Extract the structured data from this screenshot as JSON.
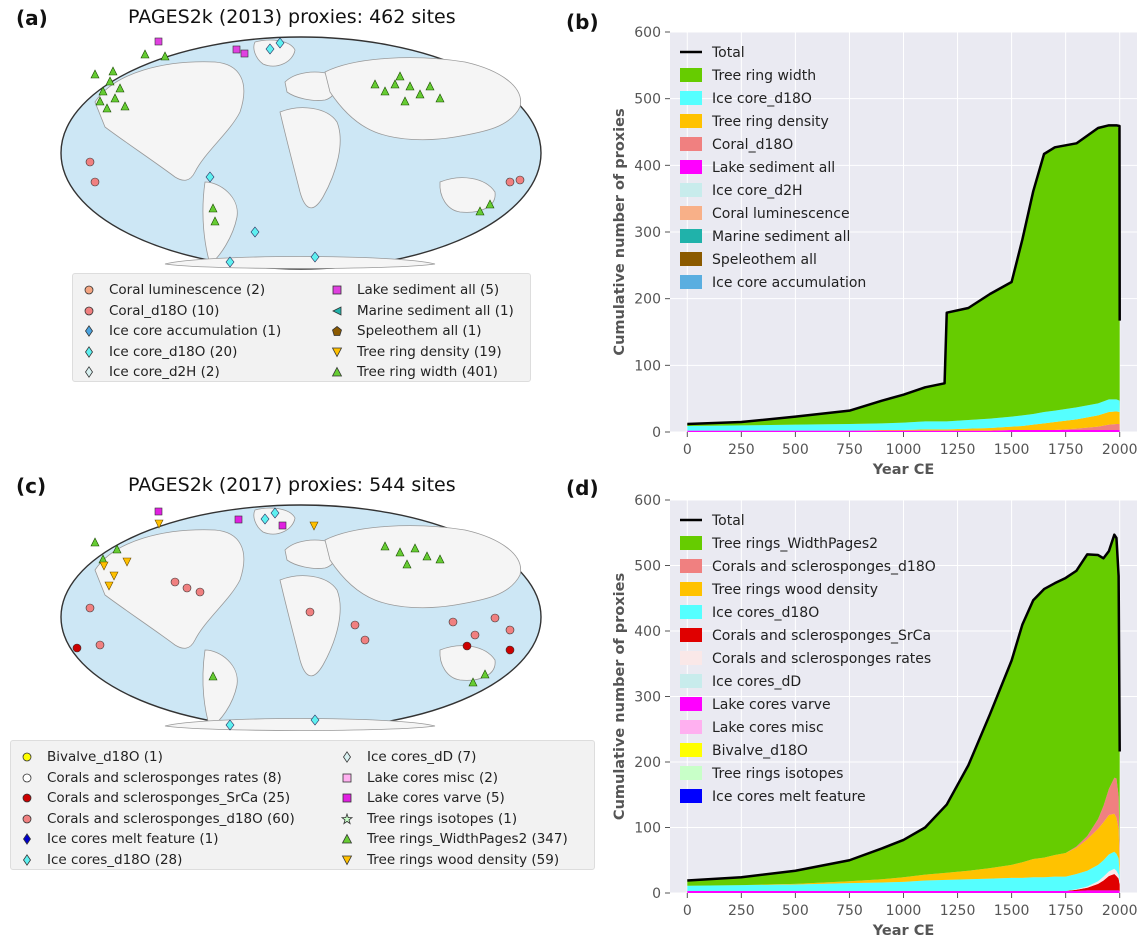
{
  "panels": {
    "a": {
      "letter": "(a)",
      "title": "PAGES2k (2013) proxies: 462 sites",
      "legend_left": [
        {
          "label": "Coral luminescence (2)",
          "marker": "circle",
          "color": "#f4a582"
        },
        {
          "label": "Coral_d18O (10)",
          "marker": "circle",
          "color": "#f08080"
        },
        {
          "label": "Ice core accumulation (1)",
          "marker": "diamond",
          "color": "#4aa3df"
        },
        {
          "label": "Ice core_d18O (20)",
          "marker": "diamond",
          "color": "#5ef0f0"
        },
        {
          "label": "Ice core_d2H (2)",
          "marker": "diamond",
          "color": "#d8f0f0"
        }
      ],
      "legend_right": [
        {
          "label": "Lake sediment all (5)",
          "marker": "square",
          "color": "#e040e0"
        },
        {
          "label": "Marine sediment all (1)",
          "marker": "triangle-left",
          "color": "#20b2aa"
        },
        {
          "label": "Speleothem all (1)",
          "marker": "pentagon",
          "color": "#8b5a00"
        },
        {
          "label": "Tree ring density (19)",
          "marker": "triangle-down",
          "color": "#ffc000"
        },
        {
          "label": "Tree ring width (401)",
          "marker": "triangle-up",
          "color": "#66cc33"
        }
      ]
    },
    "b": {
      "letter": "(b)"
    },
    "c": {
      "letter": "(c)",
      "title": "PAGES2k (2017) proxies: 544 sites",
      "legend_left": [
        {
          "label": "Bivalve_d18O (1)",
          "marker": "circle",
          "color": "#ffff00"
        },
        {
          "label": "Corals and sclerosponges rates (8)",
          "marker": "circle",
          "color": "#ffffff"
        },
        {
          "label": "Corals and sclerosponges_SrCa (25)",
          "marker": "circle",
          "color": "#cc0000"
        },
        {
          "label": "Corals and sclerosponges_d18O (60)",
          "marker": "circle",
          "color": "#f08080"
        },
        {
          "label": "Ice cores melt feature (1)",
          "marker": "diamond",
          "color": "#0000cc"
        },
        {
          "label": "Ice cores_d18O (28)",
          "marker": "diamond",
          "color": "#5ef0f0"
        }
      ],
      "legend_right": [
        {
          "label": "Ice cores_dD (7)",
          "marker": "diamond",
          "color": "#d8f0f0"
        },
        {
          "label": "Lake cores misc (2)",
          "marker": "square",
          "color": "#ffb0f0"
        },
        {
          "label": "Lake cores varve (5)",
          "marker": "square",
          "color": "#e020e0"
        },
        {
          "label": "Tree rings isotopes (1)",
          "marker": "star",
          "color": "#c8ffc8"
        },
        {
          "label": "Tree rings_WidthPages2 (347)",
          "marker": "triangle-up",
          "color": "#66cc33"
        },
        {
          "label": "Tree rings wood density (59)",
          "marker": "triangle-down",
          "color": "#ffc000"
        }
      ]
    },
    "d": {
      "letter": "(d)"
    }
  },
  "chart_data": [
    {
      "panel": "b",
      "type": "area",
      "xlabel": "Year CE",
      "ylabel": "Cumulative number of proxies",
      "xlim": [
        -80,
        2080
      ],
      "ylim": [
        0,
        600
      ],
      "xticks": [
        0,
        250,
        500,
        750,
        1000,
        1250,
        1500,
        1750,
        2000
      ],
      "yticks": [
        0,
        100,
        200,
        300,
        400,
        500,
        600
      ],
      "grid": true,
      "background": "#eaeaf2",
      "legend_position": "top-left",
      "legend": [
        {
          "name": "Total",
          "color": "#000000",
          "kind": "line"
        },
        {
          "name": "Tree ring width",
          "color": "#66cc00"
        },
        {
          "name": "Ice core_d18O",
          "color": "#55ffff"
        },
        {
          "name": "Tree ring density",
          "color": "#ffc200"
        },
        {
          "name": "Coral_d18O",
          "color": "#f08080"
        },
        {
          "name": "Lake sediment all",
          "color": "#ff00ff"
        },
        {
          "name": "Ice core_d2H",
          "color": "#c8ecec"
        },
        {
          "name": "Coral luminescence",
          "color": "#f8b088"
        },
        {
          "name": "Marine sediment all",
          "color": "#20b2aa"
        },
        {
          "name": "Speleothem all",
          "color": "#8b5a00"
        },
        {
          "name": "Ice core accumulation",
          "color": "#5aaee0"
        }
      ],
      "x": [
        0,
        250,
        500,
        750,
        900,
        1000,
        1100,
        1190,
        1200,
        1300,
        1400,
        1500,
        1550,
        1600,
        1650,
        1700,
        1800,
        1900,
        1950,
        1985,
        1999,
        2000
      ],
      "stack": [
        {
          "name": "Lake sediment all",
          "color": "#ff00ff",
          "values": [
            2,
            2,
            2,
            2,
            2,
            2,
            2,
            2,
            2,
            2,
            2,
            3,
            3,
            3,
            3,
            3,
            3,
            3,
            3,
            3,
            3,
            2
          ]
        },
        {
          "name": "Coral_d18O",
          "color": "#f08080",
          "values": [
            0,
            0,
            0,
            0,
            0,
            0,
            0,
            0,
            0,
            0,
            0,
            0,
            0,
            0,
            0,
            0,
            2,
            5,
            8,
            9,
            9,
            5
          ]
        },
        {
          "name": "Tree ring density",
          "color": "#ffc200",
          "values": [
            0,
            0,
            0,
            0,
            1,
            1,
            2,
            2,
            2,
            3,
            4,
            5,
            6,
            8,
            10,
            12,
            14,
            17,
            19,
            19,
            18,
            10
          ]
        },
        {
          "name": "Ice core_d18O",
          "color": "#55ffff",
          "values": [
            7,
            8,
            9,
            10,
            10,
            11,
            12,
            12,
            12,
            13,
            14,
            15,
            16,
            16,
            17,
            17,
            18,
            18,
            19,
            18,
            17,
            5
          ]
        },
        {
          "name": "Tree ring width",
          "color": "#66cc00",
          "values": [
            3,
            5,
            12,
            20,
            34,
            42,
            51,
            57,
            163,
            168,
            187,
            202,
            264,
            334,
            387,
            395,
            396,
            413,
            411,
            411,
            412,
            145
          ]
        }
      ],
      "total": [
        12,
        15,
        23,
        32,
        47,
        56,
        67,
        73,
        179,
        186,
        207,
        225,
        289,
        361,
        417,
        427,
        433,
        456,
        460,
        460,
        459,
        167
      ]
    },
    {
      "panel": "d",
      "type": "area",
      "xlabel": "Year CE",
      "ylabel": "Cumulative number of proxies",
      "xlim": [
        -80,
        2080
      ],
      "ylim": [
        0,
        600
      ],
      "xticks": [
        0,
        250,
        500,
        750,
        1000,
        1250,
        1500,
        1750,
        2000
      ],
      "yticks": [
        0,
        100,
        200,
        300,
        400,
        500,
        600
      ],
      "grid": true,
      "background": "#eaeaf2",
      "legend_position": "top-left",
      "legend": [
        {
          "name": "Total",
          "color": "#000000",
          "kind": "line"
        },
        {
          "name": "Tree rings_WidthPages2",
          "color": "#66cc00"
        },
        {
          "name": "Corals and sclerosponges_d18O",
          "color": "#f08080"
        },
        {
          "name": "Tree rings wood density",
          "color": "#ffc200"
        },
        {
          "name": "Ice cores_d18O",
          "color": "#55ffff"
        },
        {
          "name": "Corals and sclerosponges_SrCa",
          "color": "#e00000"
        },
        {
          "name": "Corals and sclerosponges rates",
          "color": "#fae8e8"
        },
        {
          "name": "Ice cores_dD",
          "color": "#c8ecec"
        },
        {
          "name": "Lake cores varve",
          "color": "#ff00ff"
        },
        {
          "name": "Lake cores misc",
          "color": "#ffb0f0"
        },
        {
          "name": "Bivalve_d18O",
          "color": "#ffff00"
        },
        {
          "name": "Tree rings isotopes",
          "color": "#c8ffc8"
        },
        {
          "name": "Ice cores melt feature",
          "color": "#0000ff"
        }
      ],
      "x": [
        0,
        250,
        500,
        750,
        900,
        1000,
        1100,
        1200,
        1300,
        1400,
        1500,
        1550,
        1600,
        1650,
        1700,
        1750,
        1800,
        1850,
        1900,
        1925,
        1950,
        1975,
        1985,
        1995,
        2000
      ],
      "stack": [
        {
          "name": "Lake cores varve",
          "color": "#ff00ff",
          "values": [
            3,
            3,
            3,
            3,
            3,
            3,
            3,
            3,
            3,
            3,
            3,
            3,
            3,
            3,
            3,
            3,
            3,
            4,
            4,
            4,
            4,
            4,
            4,
            4,
            3
          ]
        },
        {
          "name": "Corals and sclerosponges_SrCa",
          "color": "#e00000",
          "values": [
            0,
            0,
            0,
            0,
            0,
            0,
            0,
            0,
            0,
            0,
            0,
            0,
            0,
            0,
            0,
            0,
            2,
            4,
            10,
            15,
            22,
            25,
            22,
            18,
            10
          ]
        },
        {
          "name": "Corals and sclerosponges rates",
          "color": "#fae8e8",
          "values": [
            0,
            0,
            0,
            0,
            0,
            0,
            0,
            0,
            0,
            0,
            0,
            0,
            0,
            0,
            0,
            0,
            1,
            2,
            4,
            6,
            7,
            8,
            8,
            6,
            3
          ]
        },
        {
          "name": "Ice cores_d18O",
          "color": "#55ffff",
          "values": [
            8,
            9,
            10,
            12,
            13,
            14,
            16,
            17,
            18,
            19,
            20,
            20,
            21,
            21,
            22,
            22,
            23,
            24,
            25,
            25,
            26,
            26,
            26,
            25,
            10
          ]
        },
        {
          "name": "Tree rings wood density",
          "color": "#ffc200",
          "values": [
            0,
            0,
            1,
            3,
            5,
            7,
            9,
            11,
            13,
            16,
            20,
            24,
            28,
            30,
            33,
            36,
            40,
            48,
            55,
            58,
            60,
            58,
            55,
            45,
            20
          ]
        },
        {
          "name": "Corals and sclerosponges_d18O",
          "color": "#f08080",
          "values": [
            0,
            0,
            0,
            0,
            0,
            0,
            0,
            0,
            0,
            0,
            0,
            0,
            0,
            0,
            0,
            0,
            2,
            5,
            15,
            25,
            40,
            55,
            60,
            50,
            20
          ]
        },
        {
          "name": "Tree rings_WidthPages2",
          "color": "#66cc00",
          "values": [
            8,
            12,
            20,
            32,
            47,
            57,
            72,
            104,
            161,
            235,
            312,
            363,
            395,
            410,
            415,
            420,
            421,
            430,
            403,
            378,
            363,
            371,
            367,
            336,
            150
          ]
        }
      ],
      "total": [
        19,
        24,
        34,
        50,
        68,
        81,
        100,
        135,
        195,
        273,
        355,
        410,
        447,
        464,
        473,
        481,
        492,
        517,
        516,
        511,
        522,
        547,
        542,
        484,
        216
      ]
    }
  ]
}
